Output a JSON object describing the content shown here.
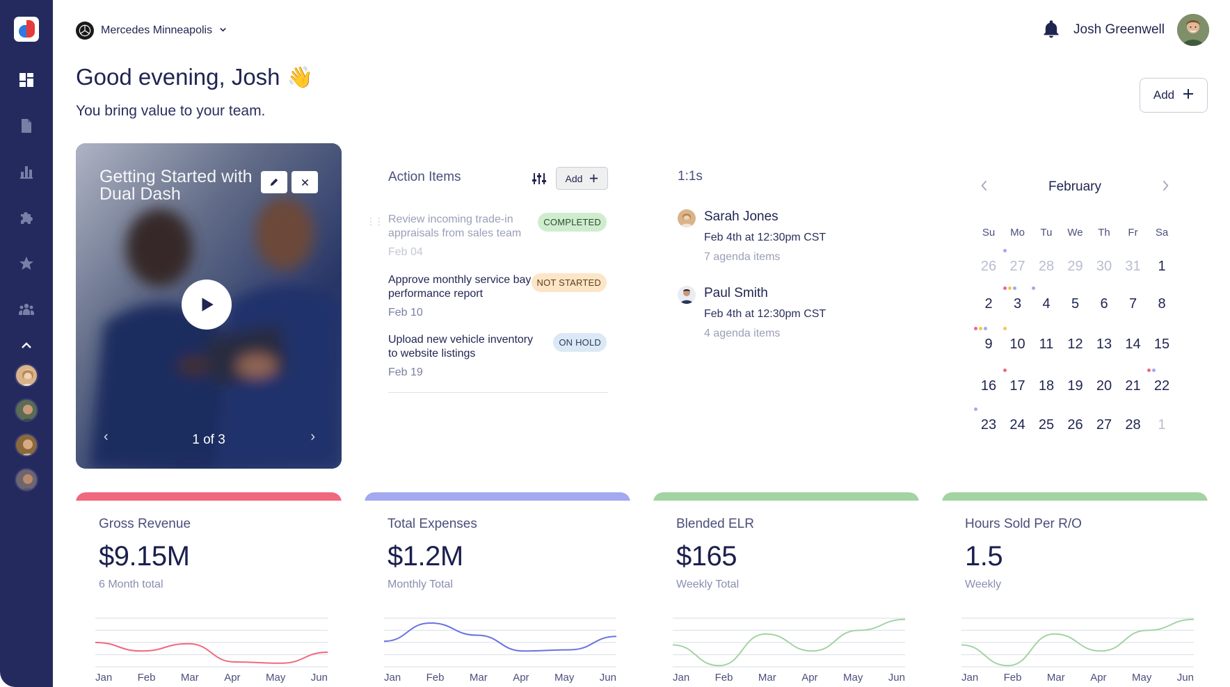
{
  "header": {
    "store_name": "Mercedes Minneapolis",
    "user_name": "Josh Greenwell",
    "greeting": "Good evening, Josh",
    "greeting_emoji": "👋",
    "tagline": "You bring value to your team.",
    "add_label": "Add"
  },
  "sidebar": {
    "items": [
      {
        "icon": "dashboard-icon"
      },
      {
        "icon": "document-icon"
      },
      {
        "icon": "chart-icon"
      },
      {
        "icon": "puzzle-icon"
      },
      {
        "icon": "star-icon"
      },
      {
        "icon": "team-icon"
      }
    ]
  },
  "video": {
    "title": "Getting Started with Dual Dash",
    "pager": "1 of 3"
  },
  "action_items": {
    "title": "Action Items",
    "add_label": "Add",
    "items": [
      {
        "title": "Review incoming trade-in appraisals from sales team",
        "date": "Feb 04",
        "status": "COMPLETED"
      },
      {
        "title": "Approve monthly service bay performance report",
        "date": "Feb 10",
        "status": "NOT STARTED"
      },
      {
        "title": "Upload new vehicle inventory to website listings",
        "date": "Feb 19",
        "status": "ON HOLD"
      }
    ]
  },
  "one_on_ones": {
    "title": "1:1s",
    "items": [
      {
        "name": "Sarah Jones",
        "time": "Feb 4th at 12:30pm CST",
        "agenda": "7 agenda items"
      },
      {
        "name": "Paul Smith",
        "time": "Feb 4th at 12:30pm CST",
        "agenda": "4 agenda items"
      }
    ]
  },
  "calendar": {
    "month": "February",
    "weekdays": [
      "Su",
      "Mo",
      "Tu",
      "We",
      "Th",
      "Fr",
      "Sa"
    ],
    "weeks": [
      [
        "26",
        "27",
        "28",
        "29",
        "30",
        "31",
        "1"
      ],
      [
        "2",
        "3",
        "4",
        "5",
        "6",
        "7",
        "8"
      ],
      [
        "9",
        "10",
        "11",
        "12",
        "13",
        "14",
        "15"
      ],
      [
        "16",
        "17",
        "18",
        "19",
        "20",
        "21",
        "22"
      ],
      [
        "23",
        "24",
        "25",
        "26",
        "27",
        "28",
        "1"
      ]
    ]
  },
  "metrics": [
    {
      "label": "Gross Revenue",
      "value": "$9.15M",
      "sub": "6 Month total",
      "color": "#f0687e"
    },
    {
      "label": "Total Expenses",
      "value": "$1.2M",
      "sub": "Monthly Total",
      "color": "#a3a8ef"
    },
    {
      "label": "Blended ELR",
      "value": "$165",
      "sub": "Weekly Total",
      "color": "#a3d3a3"
    },
    {
      "label": "Hours Sold Per R/O",
      "value": "1.5",
      "sub": "Weekly",
      "color": "#a3d3a3"
    }
  ],
  "chart_data": [
    {
      "type": "line",
      "x": [
        "Jan",
        "Feb",
        "Mar",
        "Apr",
        "May",
        "Jun"
      ],
      "series": [
        {
          "values": [
            2.0,
            1.3,
            1.9,
            0.4,
            0.3,
            1.2
          ]
        }
      ],
      "ylim": [
        0,
        4
      ]
    },
    {
      "type": "line",
      "x": [
        "Jan",
        "Feb",
        "Mar",
        "Apr",
        "May",
        "Jun"
      ],
      "series": [
        {
          "values": [
            2.1,
            3.6,
            2.6,
            1.3,
            1.4,
            2.5
          ]
        }
      ],
      "ylim": [
        0,
        4
      ]
    },
    {
      "type": "line",
      "x": [
        "Jan",
        "Feb",
        "Mar",
        "Apr",
        "May",
        "Jun"
      ],
      "series": [
        {
          "values": [
            1.8,
            0.1,
            2.7,
            1.3,
            3.0,
            3.9
          ]
        }
      ],
      "ylim": [
        0,
        4
      ]
    },
    {
      "type": "line",
      "x": [
        "Jan",
        "Feb",
        "Mar",
        "Apr",
        "May",
        "Jun"
      ],
      "series": [
        {
          "values": [
            1.8,
            0.1,
            2.7,
            1.3,
            3.0,
            3.9
          ]
        }
      ],
      "ylim": [
        0,
        4
      ]
    }
  ]
}
